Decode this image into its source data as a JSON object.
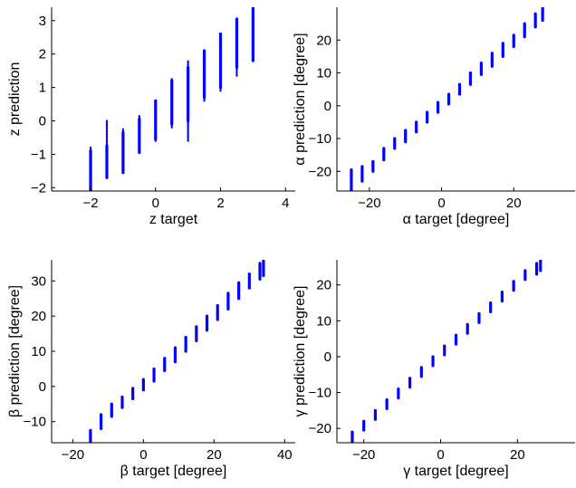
{
  "colors": {
    "points": "#0000ff",
    "axes": "#000000",
    "background": "#ffffff"
  },
  "chart_data": [
    {
      "type": "scatter",
      "title": "",
      "xlabel": "z target",
      "ylabel": "z prediction",
      "xlim": [
        -3.2,
        4.3
      ],
      "ylim": [
        -2.1,
        3.4
      ],
      "xticks": [
        -2,
        0,
        2,
        4
      ],
      "yticks": [
        -2,
        -1,
        0,
        1,
        2,
        3
      ],
      "grid": false,
      "series": [
        {
          "values": [
            {
              "x": -2.0,
              "ymin": -2.1,
              "ymax": -0.8,
              "dense": [
                -2.1,
                -0.9
              ]
            },
            {
              "x": -1.5,
              "ymin": -1.7,
              "ymax": 0.0,
              "dense": [
                -1.7,
                -0.75
              ]
            },
            {
              "x": -1.0,
              "ymin": -1.55,
              "ymax": -0.25,
              "dense": [
                -1.55,
                -0.35
              ]
            },
            {
              "x": -0.5,
              "ymin": -0.95,
              "ymax": 0.15,
              "dense": [
                -0.95,
                0.05
              ]
            },
            {
              "x": 0.0,
              "ymin": -0.6,
              "ymax": 0.6,
              "dense": [
                -0.55,
                0.6
              ]
            },
            {
              "x": 0.5,
              "ymin": -0.2,
              "ymax": 1.25,
              "dense": [
                -0.1,
                1.2
              ]
            },
            {
              "x": 1.0,
              "ymin": -0.6,
              "ymax": 1.8,
              "dense": [
                0.0,
                1.6
              ]
            },
            {
              "x": 1.5,
              "ymin": 0.6,
              "ymax": 2.1,
              "dense": [
                0.7,
                2.1
              ]
            },
            {
              "x": 2.0,
              "ymin": 0.9,
              "ymax": 2.6,
              "dense": [
                1.0,
                2.6
              ]
            },
            {
              "x": 2.5,
              "ymin": 1.35,
              "ymax": 3.05,
              "dense": [
                1.6,
                3.05
              ]
            },
            {
              "x": 3.0,
              "ymin": 1.8,
              "ymax": 3.4,
              "dense": [
                1.8,
                3.4
              ]
            }
          ]
        }
      ]
    },
    {
      "type": "scatter",
      "title": "",
      "xlabel": "α target [degree]",
      "ylabel": "α prediction [degree]",
      "xlim": [
        -29,
        37
      ],
      "ylim": [
        -26,
        30
      ],
      "xticks": [
        -20,
        0,
        20
      ],
      "yticks": [
        -20,
        -10,
        0,
        10,
        20
      ],
      "grid": false,
      "series": [
        {
          "values": [
            {
              "x": -25,
              "ymin": -26,
              "ymax": -19.5
            },
            {
              "x": -22,
              "ymin": -23,
              "ymax": -18.5
            },
            {
              "x": -19,
              "ymin": -20,
              "ymax": -17
            },
            {
              "x": -16,
              "ymin": -16.5,
              "ymax": -13
            },
            {
              "x": -13,
              "ymin": -13,
              "ymax": -10
            },
            {
              "x": -10,
              "ymin": -11,
              "ymax": -7.5
            },
            {
              "x": -7,
              "ymin": -8,
              "ymax": -5
            },
            {
              "x": -4,
              "ymin": -5,
              "ymax": -2
            },
            {
              "x": -1,
              "ymin": -2,
              "ymax": 1
            },
            {
              "x": 2,
              "ymin": 0.5,
              "ymax": 3.5
            },
            {
              "x": 5,
              "ymin": 3.5,
              "ymax": 6.5
            },
            {
              "x": 8,
              "ymin": 6.5,
              "ymax": 10
            },
            {
              "x": 11,
              "ymin": 9.5,
              "ymax": 13
            },
            {
              "x": 14,
              "ymin": 12,
              "ymax": 16
            },
            {
              "x": 17,
              "ymin": 15,
              "ymax": 19
            },
            {
              "x": 20,
              "ymin": 18,
              "ymax": 21.5
            },
            {
              "x": 23,
              "ymin": 21,
              "ymax": 25
            },
            {
              "x": 26,
              "ymin": 24,
              "ymax": 28
            },
            {
              "x": 28,
              "ymin": 26,
              "ymax": 30
            }
          ]
        }
      ]
    },
    {
      "type": "scatter",
      "title": "",
      "xlabel": "β target [degree]",
      "ylabel": "β prediction [degree]",
      "xlim": [
        -26,
        43
      ],
      "ylim": [
        -16,
        36
      ],
      "xticks": [
        -20,
        0,
        20,
        40
      ],
      "yticks": [
        -10,
        0,
        10,
        20,
        30
      ],
      "grid": false,
      "series": [
        {
          "values": [
            {
              "x": -15,
              "ymin": -16,
              "ymax": -12.5
            },
            {
              "x": -12,
              "ymin": -12,
              "ymax": -8
            },
            {
              "x": -9,
              "ymin": -8.5,
              "ymax": -5
            },
            {
              "x": -6,
              "ymin": -6,
              "ymax": -3
            },
            {
              "x": -3,
              "ymin": -3.5,
              "ymax": -0.5
            },
            {
              "x": 0,
              "ymin": -1,
              "ymax": 2
            },
            {
              "x": 3,
              "ymin": 1.5,
              "ymax": 5
            },
            {
              "x": 6,
              "ymin": 4.5,
              "ymax": 8
            },
            {
              "x": 9,
              "ymin": 7,
              "ymax": 11
            },
            {
              "x": 12,
              "ymin": 10,
              "ymax": 14
            },
            {
              "x": 15,
              "ymin": 13,
              "ymax": 17
            },
            {
              "x": 18,
              "ymin": 16,
              "ymax": 20
            },
            {
              "x": 21,
              "ymin": 19,
              "ymax": 23
            },
            {
              "x": 24,
              "ymin": 22,
              "ymax": 26.5
            },
            {
              "x": 27,
              "ymin": 25,
              "ymax": 29.5
            },
            {
              "x": 30,
              "ymin": 28,
              "ymax": 32
            },
            {
              "x": 33,
              "ymin": 30.5,
              "ymax": 35
            },
            {
              "x": 34,
              "ymin": 31.5,
              "ymax": 36
            }
          ]
        }
      ]
    },
    {
      "type": "scatter",
      "title": "",
      "xlabel": "γ target [degree]",
      "ylabel": "γ prediction [degree]",
      "xlim": [
        -27,
        35
      ],
      "ylim": [
        -24,
        27
      ],
      "xticks": [
        -20,
        0,
        20
      ],
      "yticks": [
        -20,
        -10,
        0,
        10,
        20
      ],
      "grid": false,
      "series": [
        {
          "values": [
            {
              "x": -23,
              "ymin": -24,
              "ymax": -21
            },
            {
              "x": -20,
              "ymin": -20.5,
              "ymax": -18
            },
            {
              "x": -17,
              "ymin": -17.5,
              "ymax": -15
            },
            {
              "x": -14,
              "ymin": -14.5,
              "ymax": -12
            },
            {
              "x": -11,
              "ymin": -11.5,
              "ymax": -9
            },
            {
              "x": -8,
              "ymin": -8.5,
              "ymax": -6
            },
            {
              "x": -5,
              "ymin": -5.5,
              "ymax": -3
            },
            {
              "x": -2,
              "ymin": -2.5,
              "ymax": 0
            },
            {
              "x": 1,
              "ymin": 0.5,
              "ymax": 3
            },
            {
              "x": 4,
              "ymin": 3.5,
              "ymax": 6
            },
            {
              "x": 7,
              "ymin": 6.5,
              "ymax": 9
            },
            {
              "x": 10,
              "ymin": 9.5,
              "ymax": 12
            },
            {
              "x": 13,
              "ymin": 12.5,
              "ymax": 15
            },
            {
              "x": 16,
              "ymin": 15.5,
              "ymax": 18
            },
            {
              "x": 19,
              "ymin": 18.5,
              "ymax": 21
            },
            {
              "x": 22,
              "ymin": 21.5,
              "ymax": 24
            },
            {
              "x": 25,
              "ymin": 23,
              "ymax": 26
            },
            {
              "x": 26,
              "ymin": 24,
              "ymax": 27
            }
          ]
        }
      ]
    }
  ]
}
